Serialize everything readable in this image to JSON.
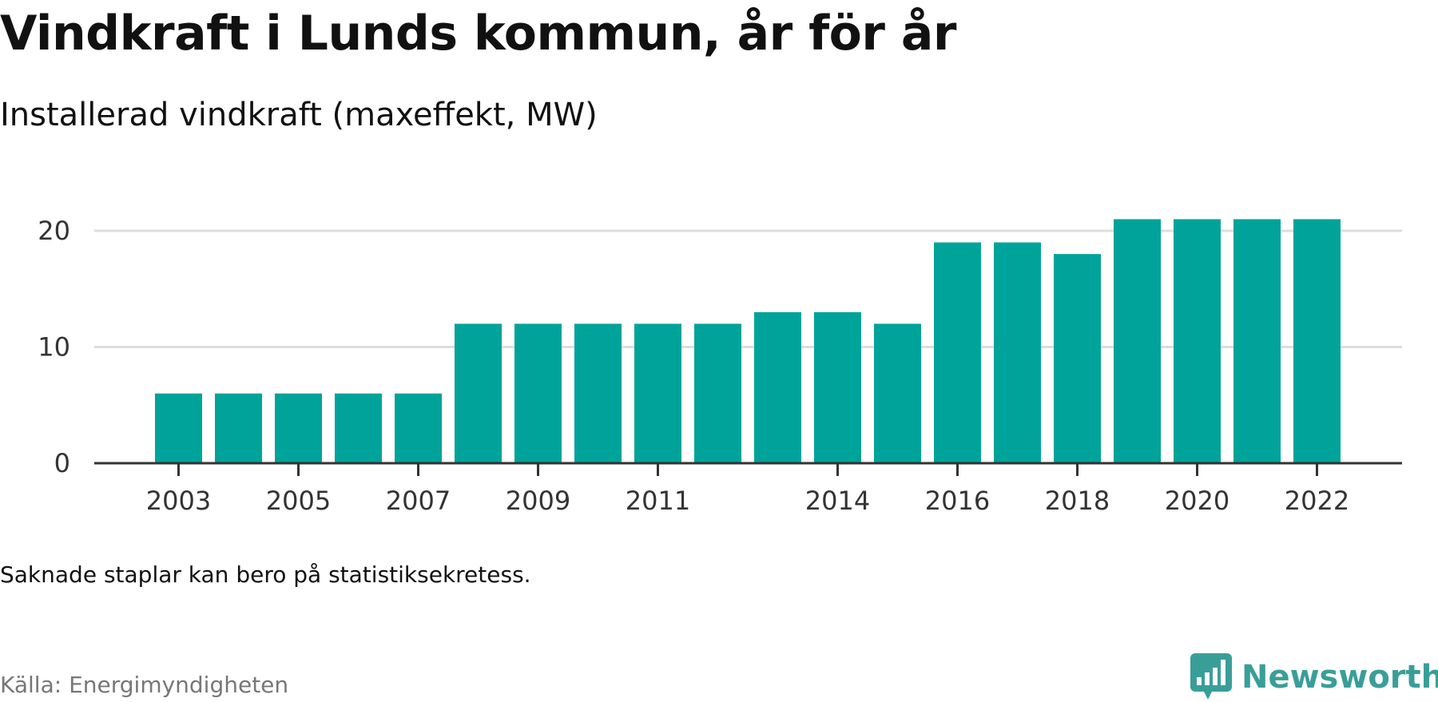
{
  "header": {
    "title": "Vindkraft i Lunds kommun, år för år",
    "subtitle": "Installerad vindkraft (maxeffekt, MW)"
  },
  "chart_data": {
    "type": "bar",
    "categories": [
      "2003",
      "2004",
      "2005",
      "2006",
      "2007",
      "2008",
      "2009",
      "2010",
      "2011",
      "2012",
      "2013",
      "2014",
      "2015",
      "2016",
      "2017",
      "2018",
      "2019",
      "2020",
      "2021",
      "2022"
    ],
    "values": [
      6,
      6,
      6,
      6,
      6,
      12,
      12,
      12,
      12,
      12,
      13,
      13,
      12,
      19,
      19,
      18,
      21,
      21,
      21,
      21
    ],
    "x_tick_labels": [
      "2003",
      "2005",
      "2007",
      "2009",
      "2011",
      "2014",
      "2016",
      "2018",
      "2020",
      "2022"
    ],
    "y_ticks": [
      0,
      10,
      20
    ],
    "ylim": [
      0,
      21
    ],
    "xlabel": "",
    "ylabel": "",
    "grid": true,
    "bar_color": "#00a39a",
    "gridline_color": "#dddddd",
    "axis_color": "#333333"
  },
  "footer": {
    "note": "Saknade staplar kan bero på statistiksekretess.",
    "source": "Källa: Energimyndigheten",
    "brand_name": "Newsworthy",
    "brand_icon": "newsworthy-logo-icon",
    "brand_color": "#3a9e98"
  }
}
